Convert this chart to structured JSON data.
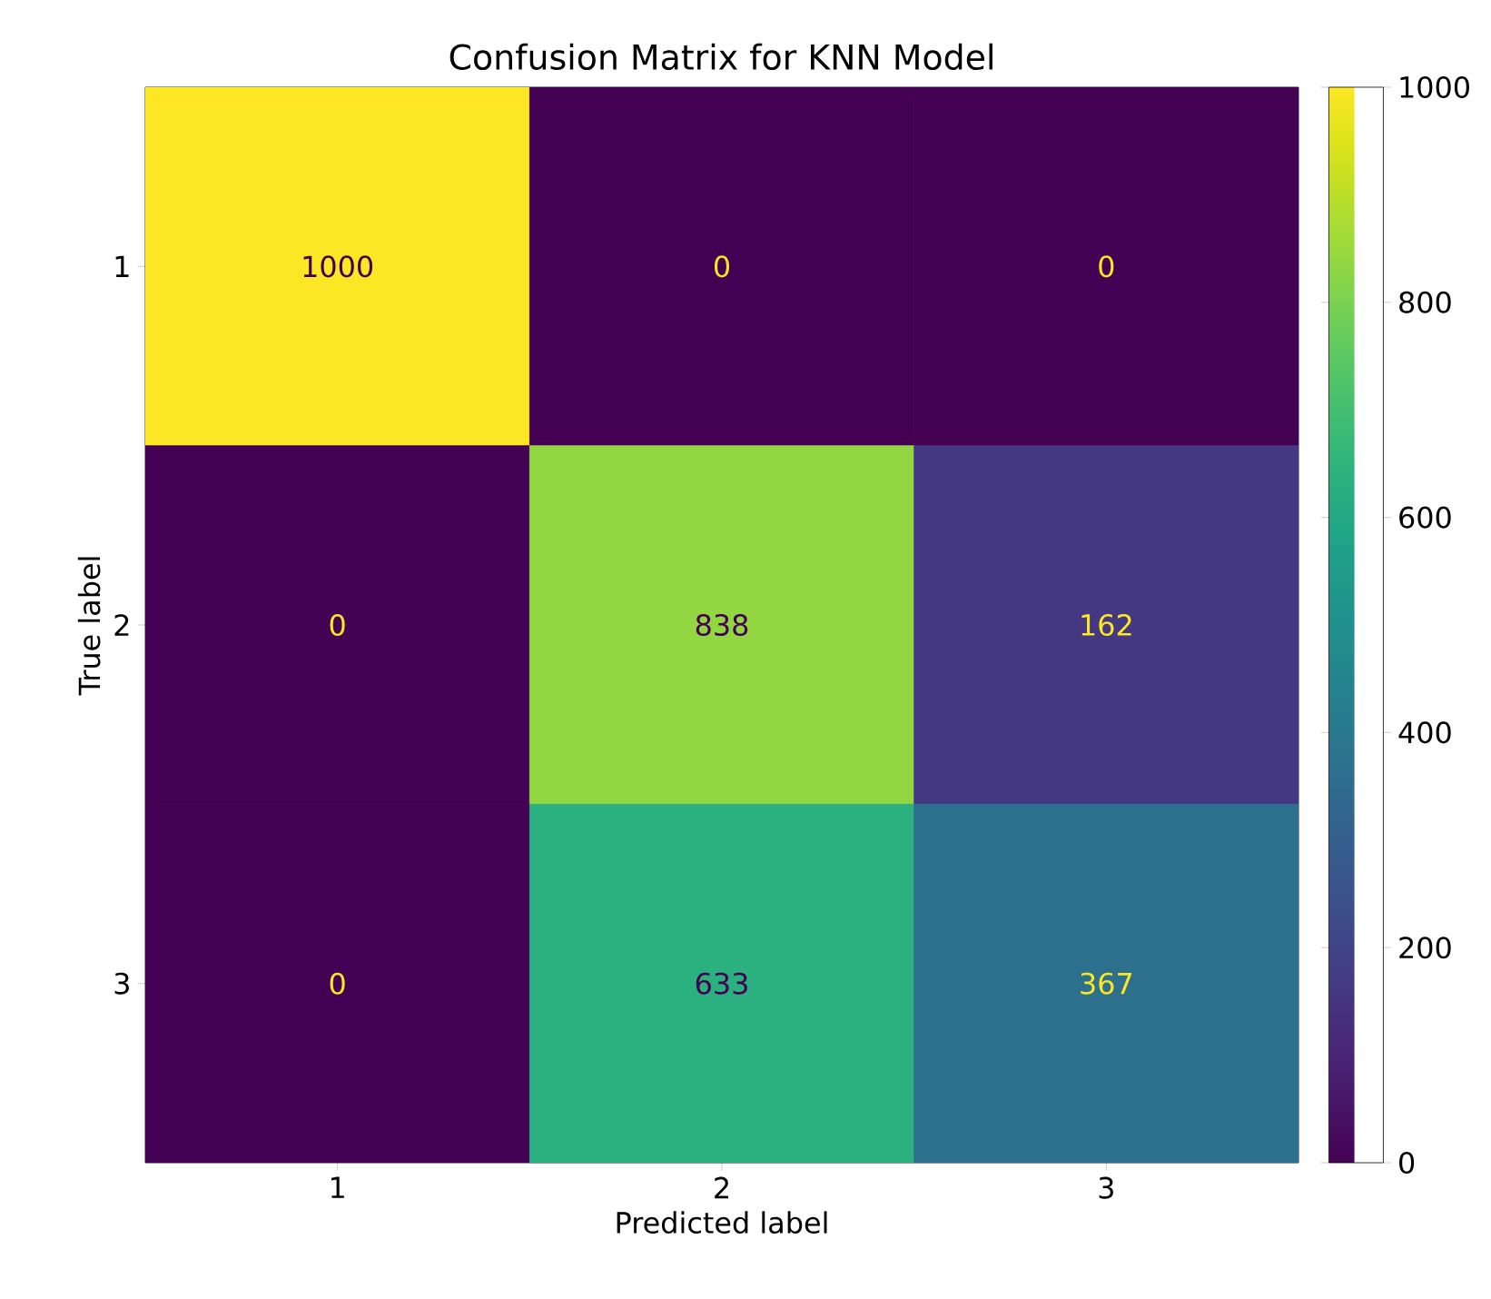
{
  "chart_data": {
    "type": "heatmap",
    "title": "Confusion Matrix for KNN Model",
    "xlabel": "Predicted label",
    "ylabel": "True label",
    "categories": [
      "1",
      "2",
      "3"
    ],
    "y_categories": [
      "1",
      "2",
      "3"
    ],
    "cells": [
      [
        1000,
        0,
        0
      ],
      [
        0,
        838,
        162
      ],
      [
        0,
        633,
        367
      ]
    ],
    "clim": [
      0,
      1000
    ],
    "cticks": [
      0,
      200,
      400,
      600,
      800,
      1000
    ],
    "data_labels": true
  }
}
